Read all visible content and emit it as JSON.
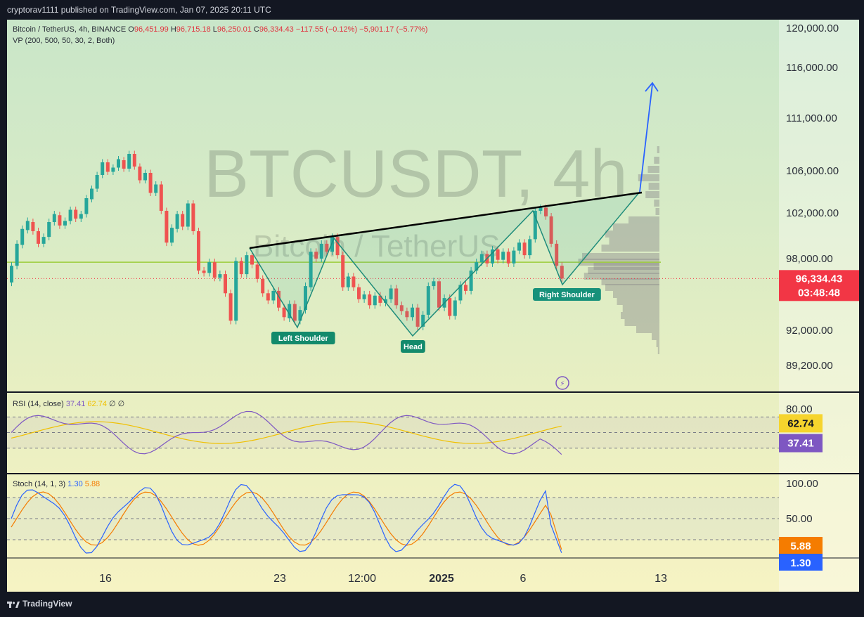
{
  "header": {
    "publisher": "cryptorav1111 published on TradingView.com, Jan 07, 2025 20:11 UTC"
  },
  "legend": {
    "symbol": "Bitcoin / TetherUS, 4h, BINANCE",
    "o_label": "O",
    "o": "96,451.99",
    "h_label": "H",
    "h": "96,715.18",
    "l_label": "L",
    "l": "96,250.01",
    "c_label": "C",
    "c": "96,334.43",
    "change": "−117.55 (−0.12%)",
    "change2": "−5,901.17 (−5.77%)",
    "vp": "VP (200, 500, 50, 30, 2, Both)"
  },
  "watermark": {
    "symbol": "BTCUSDT, 4h",
    "name": "Bitcoin / TetherUS"
  },
  "price_axis": {
    "ticks": [
      "120,000.00",
      "116,000.00",
      "111,000.00",
      "106,000.00",
      "102,000.00",
      "98,000.00",
      "92,000.00",
      "89,200.00"
    ],
    "current_price": "96,334.43",
    "countdown": "03:48:48"
  },
  "time_axis": {
    "ticks": [
      "16",
      "23",
      "12:00",
      "2025",
      "6",
      "13"
    ]
  },
  "annotations": {
    "left_shoulder": "Left Shoulder",
    "head": "Head",
    "right_shoulder": "Right Shoulder"
  },
  "rsi": {
    "label": "RSI (14, close)",
    "value": "37.41",
    "ma": "62.74",
    "extra1": "∅",
    "extra2": "∅",
    "axis_tick": "80.00"
  },
  "stoch": {
    "label": "Stoch (14, 1, 3)",
    "k": "1.30",
    "d": "5.88",
    "axis_ticks": [
      "100.00",
      "50.00"
    ]
  },
  "footer": {
    "brand": "TradingView"
  },
  "colors": {
    "up": "#26a69a",
    "down": "#ef5350",
    "neckline": "#000000",
    "pattern": "#1e8c7a",
    "projection": "#2962ff",
    "rsi": "#7e57c2",
    "rsi_ma": "#f0c000",
    "stoch_k": "#2962ff",
    "stoch_d": "#f57c00",
    "price_tag": "#f23645"
  },
  "chart_data": {
    "type": "candlestick",
    "timeframe": "4h",
    "x_ticks": [
      "16",
      "23",
      "12:00",
      "2025",
      "6",
      "13"
    ],
    "ylim": [
      88500,
      121000
    ],
    "price_candles_approx": [
      [
        96000,
        97400
      ],
      [
        97400,
        99300
      ],
      [
        99200,
        100600
      ],
      [
        100500,
        101300
      ],
      [
        101200,
        100400
      ],
      [
        100400,
        99300
      ],
      [
        99300,
        99900
      ],
      [
        99900,
        101200
      ],
      [
        101200,
        101900
      ],
      [
        101800,
        100900
      ],
      [
        100900,
        101300
      ],
      [
        101300,
        102300
      ],
      [
        102300,
        101500
      ],
      [
        101500,
        101900
      ],
      [
        101900,
        103400
      ],
      [
        103300,
        104300
      ],
      [
        104300,
        105600
      ],
      [
        105600,
        106800
      ],
      [
        106800,
        105900
      ],
      [
        105900,
        106300
      ],
      [
        106300,
        107100
      ],
      [
        107000,
        106200
      ],
      [
        106200,
        107600
      ],
      [
        107600,
        106400
      ],
      [
        106400,
        105100
      ],
      [
        105100,
        105800
      ],
      [
        105800,
        103900
      ],
      [
        103900,
        104700
      ],
      [
        104700,
        102200
      ],
      [
        102200,
        99400
      ],
      [
        99400,
        100700
      ],
      [
        100600,
        101900
      ],
      [
        101900,
        100800
      ],
      [
        100800,
        102900
      ],
      [
        102900,
        100400
      ],
      [
        100400,
        97000
      ],
      [
        97000,
        96800
      ],
      [
        96800,
        97700
      ],
      [
        97700,
        96400
      ],
      [
        96400,
        96700
      ],
      [
        96700,
        95100
      ],
      [
        95100,
        92800
      ],
      [
        92800,
        97800
      ],
      [
        97800,
        96700
      ],
      [
        96700,
        98300
      ],
      [
        98300,
        97500
      ],
      [
        97500,
        96300
      ],
      [
        96300,
        95100
      ],
      [
        95100,
        94500
      ],
      [
        94500,
        95300
      ],
      [
        95300,
        93900
      ],
      [
        93900,
        93100
      ],
      [
        93000,
        94200
      ],
      [
        94200,
        92800
      ],
      [
        92800,
        93700
      ],
      [
        93700,
        95700
      ],
      [
        95600,
        98600
      ],
      [
        98600,
        98000
      ],
      [
        98000,
        99300
      ],
      [
        99300,
        98600
      ],
      [
        98600,
        99900
      ],
      [
        99900,
        98300
      ],
      [
        98300,
        95600
      ],
      [
        95600,
        96500
      ],
      [
        96500,
        95600
      ],
      [
        95600,
        94600
      ],
      [
        94600,
        95000
      ],
      [
        95000,
        94100
      ],
      [
        94100,
        94900
      ],
      [
        94900,
        94300
      ],
      [
        94300,
        94600
      ],
      [
        94600,
        95500
      ],
      [
        95500,
        94100
      ],
      [
        94100,
        93600
      ],
      [
        93600,
        93100
      ],
      [
        93100,
        93900
      ],
      [
        93900,
        92300
      ],
      [
        92300,
        93300
      ],
      [
        93300,
        95700
      ],
      [
        95700,
        96100
      ],
      [
        96100,
        93900
      ],
      [
        93900,
        94700
      ],
      [
        94700,
        93200
      ],
      [
        93200,
        94500
      ],
      [
        94500,
        95800
      ],
      [
        95800,
        95300
      ],
      [
        95300,
        97000
      ],
      [
        97000,
        97700
      ],
      [
        97700,
        98400
      ],
      [
        98400,
        97600
      ],
      [
        97600,
        98800
      ],
      [
        98800,
        97900
      ],
      [
        97900,
        98600
      ],
      [
        98600,
        97600
      ],
      [
        97600,
        98700
      ],
      [
        98700,
        99400
      ],
      [
        99400,
        98300
      ],
      [
        98300,
        99700
      ],
      [
        99700,
        102200
      ],
      [
        102200,
        102500
      ],
      [
        102500,
        101700
      ],
      [
        101700,
        99300
      ],
      [
        99300,
        97400
      ],
      [
        97400,
        96334
      ]
    ],
    "neckline": [
      [
        0,
        99300
      ],
      [
        1,
        103800
      ]
    ],
    "pattern": {
      "left_shoulder": 92600,
      "head": 91800,
      "right_shoulder": 96334,
      "target_approx": 117000
    },
    "volume_profile": "right-side histogram, point of control ~97,700",
    "rsi_series": {
      "name": "RSI",
      "last": 37.41,
      "ma_last": 62.74,
      "upper": 70,
      "lower": 30
    },
    "stoch_series": {
      "k_last": 1.3,
      "d_last": 5.88,
      "upper": 80,
      "lower": 20
    }
  }
}
